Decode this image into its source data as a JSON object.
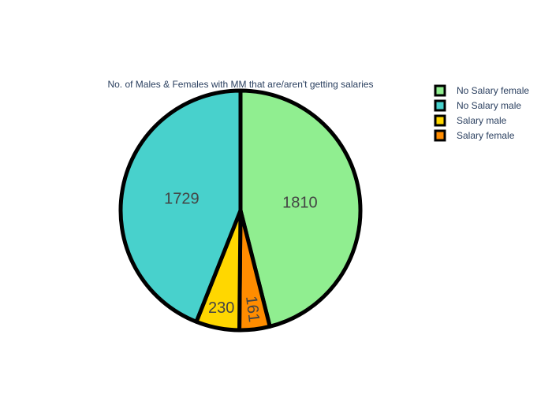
{
  "chart_data": {
    "type": "pie",
    "title": "No. of Males & Females with MM that are/aren't getting salaries",
    "slices": [
      {
        "label": "No Salary female",
        "value": 1810,
        "color": "#90ee90"
      },
      {
        "label": "Salary female",
        "value": 161,
        "color": "#ff8c00"
      },
      {
        "label": "Salary male",
        "value": 230,
        "color": "#ffd700"
      },
      {
        "label": "No Salary male",
        "value": 1729,
        "color": "#48d1cc"
      }
    ],
    "legend": {
      "position": "top-right",
      "items": [
        "No Salary female",
        "No Salary male",
        "Salary male",
        "Salary female"
      ]
    },
    "slice_border_color": "#000000",
    "direction": "clockwise from top"
  }
}
